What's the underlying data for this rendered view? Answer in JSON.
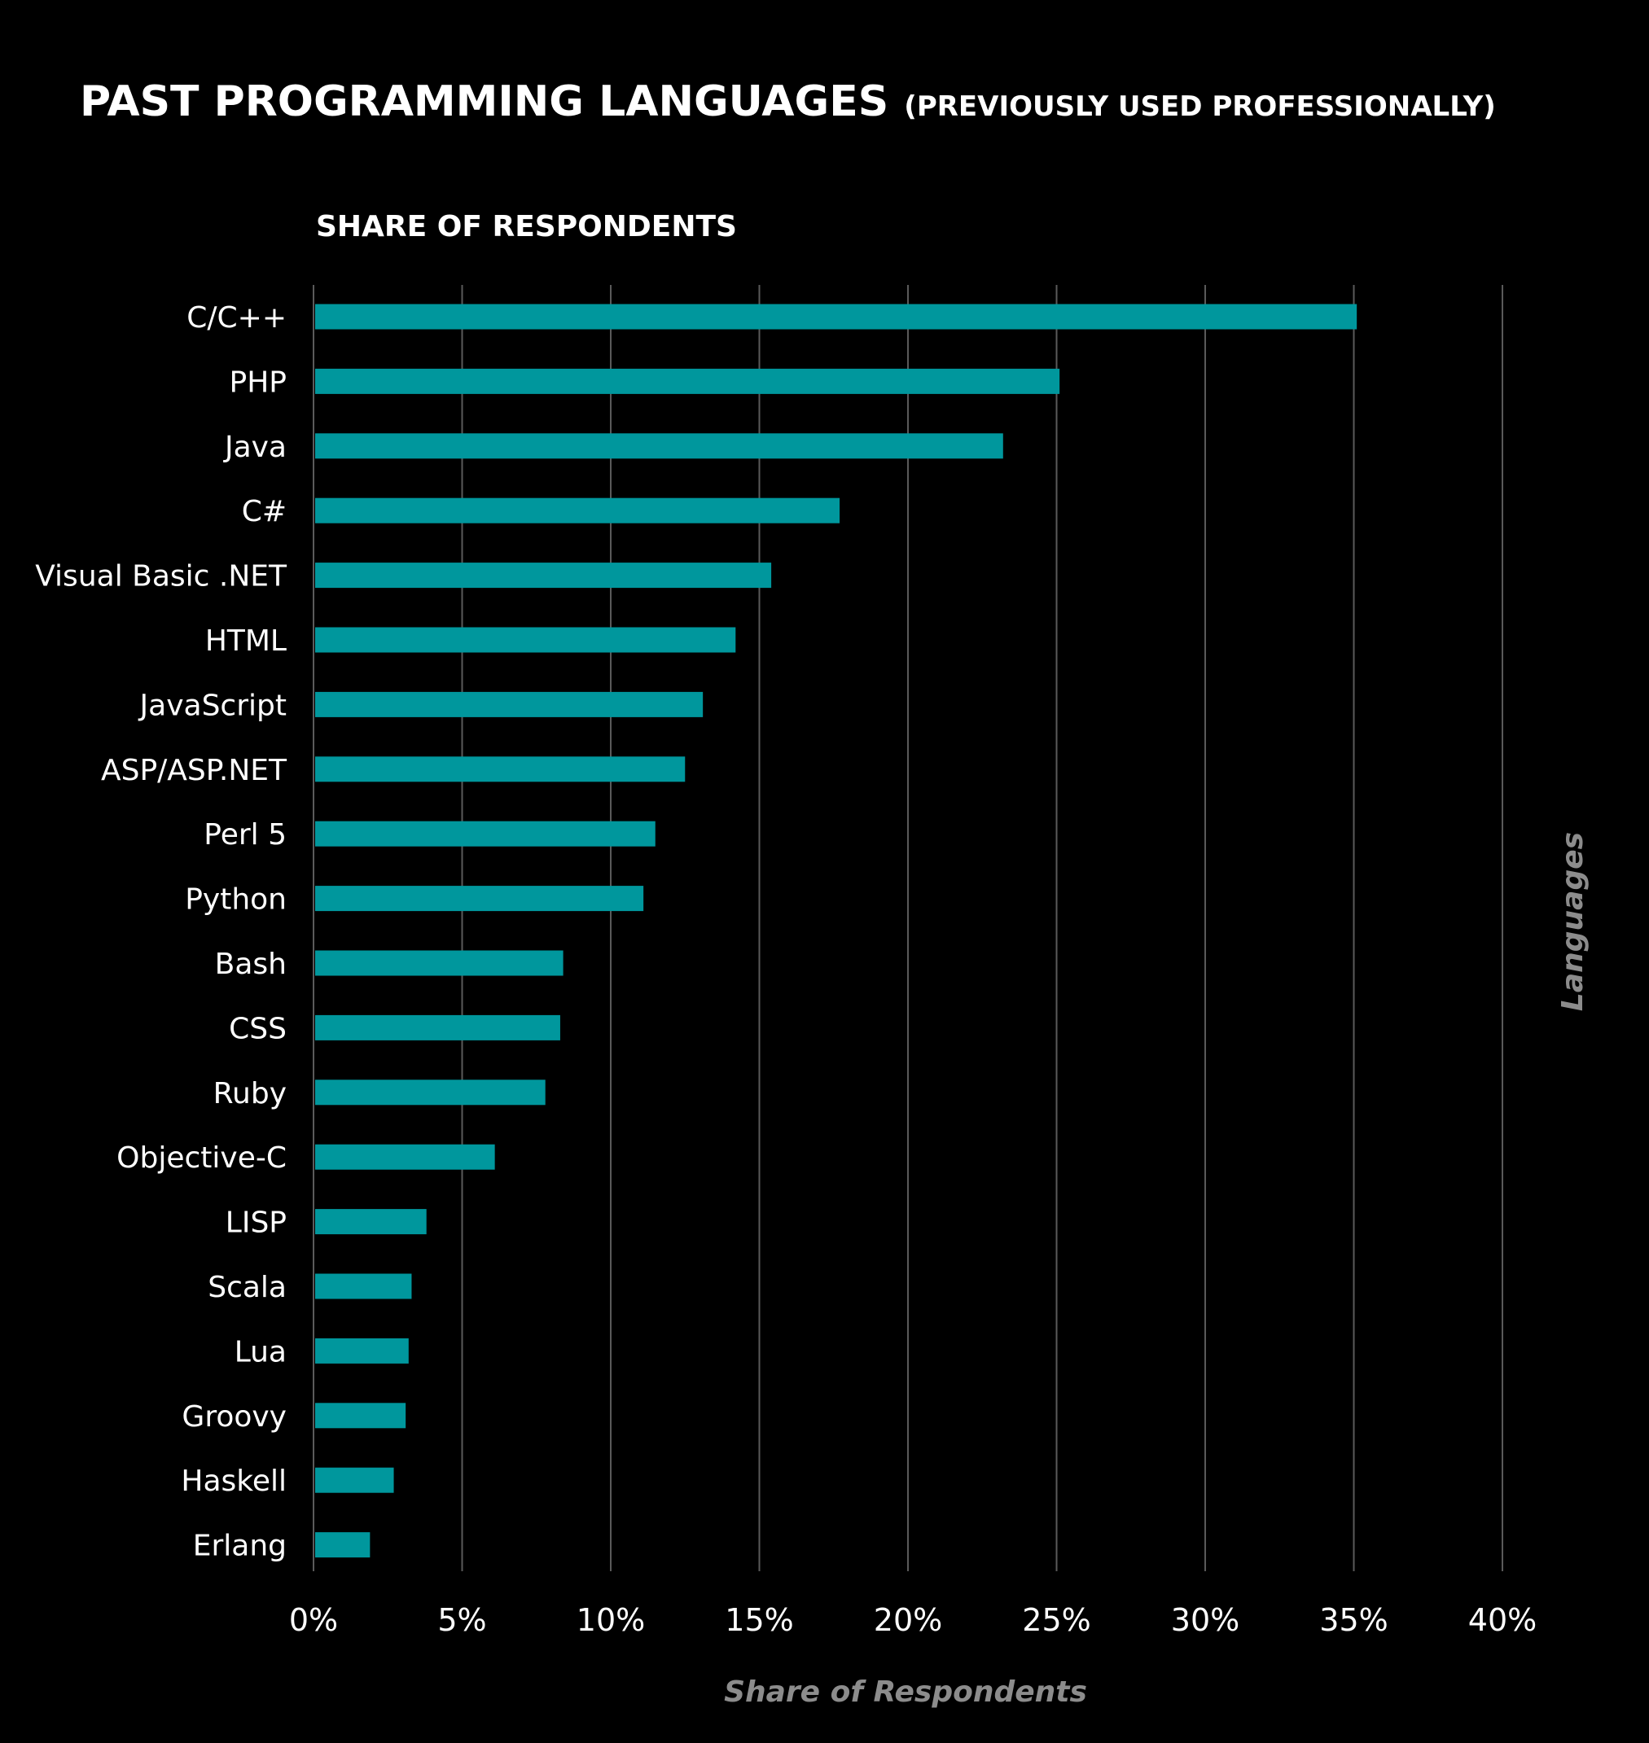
{
  "chart_data": {
    "type": "bar",
    "orientation": "horizontal",
    "title": "PAST PROGRAMMING LANGUAGES",
    "title_suffix": "(PREVIOUSLY USED PROFESSIONALLY)",
    "subtitle": "SHARE OF RESPONDENTS",
    "xlabel": "Share of Respondents",
    "ylabel": "Languages",
    "categories": [
      "C/C++",
      "PHP",
      "Java",
      "C#",
      "Visual Basic .NET",
      "HTML",
      "JavaScript",
      "ASP/ASP.NET",
      "Perl 5",
      "Python",
      "Bash",
      "CSS",
      "Ruby",
      "Objective-C",
      "LISP",
      "Scala",
      "Lua",
      "Groovy",
      "Haskell",
      "Erlang"
    ],
    "values": [
      35.1,
      25.1,
      23.2,
      17.7,
      15.4,
      14.2,
      13.1,
      12.5,
      11.5,
      11.1,
      8.4,
      8.3,
      7.8,
      6.1,
      3.8,
      3.3,
      3.2,
      3.1,
      2.7,
      1.9
    ],
    "xlim": [
      0,
      40
    ],
    "xticks": [
      "0%",
      "5%",
      "10%",
      "15%",
      "20%",
      "25%",
      "30%",
      "35%",
      "40%"
    ],
    "grid": true,
    "legend": "none",
    "colors": {
      "bar": "#00979d",
      "background": "#000000",
      "gridline": "#5a5a5a",
      "axis_title": "#8c8c8c"
    }
  }
}
